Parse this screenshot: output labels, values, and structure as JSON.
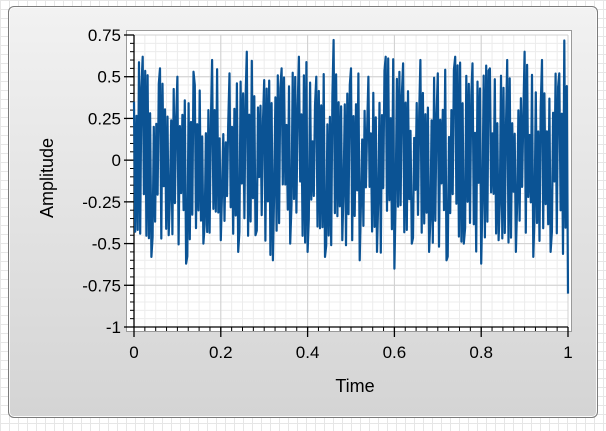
{
  "chart_data": {
    "type": "line",
    "xlabel": "Time",
    "ylabel": "Amplitude",
    "xlim": [
      0,
      1
    ],
    "ylim": [
      -1,
      0.75
    ],
    "x_ticks": [
      "0",
      "0.2",
      "0.4",
      "0.6",
      "0.8",
      "1"
    ],
    "y_ticks": [
      "0.75",
      "0.5",
      "0.25",
      "0",
      "-0.25",
      "-0.5",
      "-0.75",
      "-1"
    ],
    "grid": true,
    "series": [
      {
        "color": "#0b5394",
        "x": [
          0,
          0.02,
          0.04,
          0.06,
          0.08,
          0.1,
          0.12,
          0.14,
          0.16,
          0.18,
          0.2,
          0.22,
          0.24,
          0.26,
          0.28,
          0.3,
          0.32,
          0.34,
          0.36,
          0.38,
          0.4,
          0.42,
          0.44,
          0.46,
          0.48,
          0.5,
          0.52,
          0.54,
          0.56,
          0.58,
          0.6,
          0.62,
          0.64,
          0.66,
          0.68,
          0.7,
          0.72,
          0.74,
          0.76,
          0.78,
          0.8,
          0.82,
          0.84,
          0.86,
          0.88,
          0.9,
          0.92,
          0.94,
          0.96,
          0.98,
          1
        ],
        "y": [
          0.35,
          0.62,
          -0.58,
          0.55,
          -0.45,
          0.5,
          -0.62,
          0.45,
          -0.5,
          0.6,
          -0.48,
          0.52,
          -0.55,
          0.65,
          -0.45,
          0.48,
          -0.6,
          0.55,
          -0.5,
          0.62,
          -0.55,
          0.5,
          -0.58,
          0.72,
          -0.48,
          0.55,
          -0.6,
          0.5,
          -0.55,
          0.62,
          -0.65,
          0.58,
          -0.5,
          0.6,
          -0.55,
          0.52,
          -0.6,
          0.62,
          -0.5,
          0.58,
          -0.62,
          0.55,
          -0.48,
          0.6,
          -0.55,
          0.65,
          -0.58,
          0.6,
          -0.55,
          0.52,
          -0.8
        ]
      }
    ]
  }
}
